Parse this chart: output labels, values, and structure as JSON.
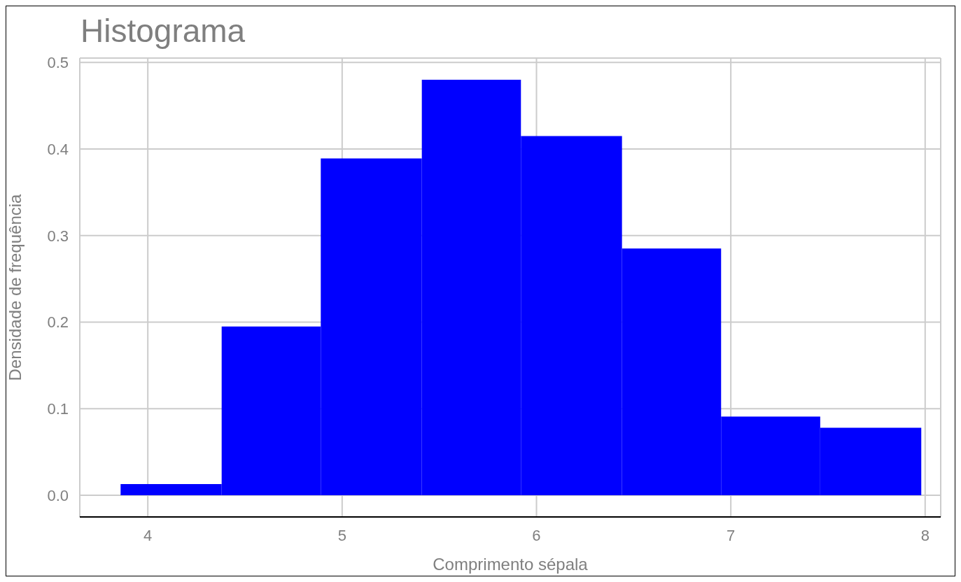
{
  "chart_data": {
    "type": "histogram",
    "title": "Histograma",
    "xlabel": "Comprimento sépala",
    "ylabel": "Densidade de frequência",
    "bins": [
      3.86,
      4.38,
      4.89,
      5.41,
      5.92,
      6.44,
      6.95,
      7.46,
      7.98
    ],
    "values": [
      0.013,
      0.195,
      0.389,
      0.48,
      0.415,
      0.285,
      0.091,
      0.078
    ],
    "color": "#0000ff",
    "xlim": [
      3.65,
      8.08
    ],
    "xticks": [
      4,
      5,
      6,
      7,
      8
    ],
    "ylim": [
      -0.025,
      0.505
    ],
    "yticks": [
      {
        "value": 0,
        "label": "0.0"
      },
      0.1,
      0.2,
      0.3,
      0.4,
      0.5
    ],
    "grid": true
  }
}
